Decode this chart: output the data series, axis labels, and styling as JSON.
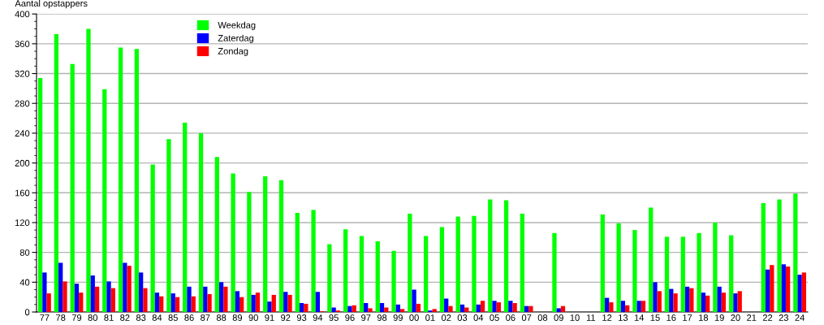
{
  "chart_data": {
    "type": "bar",
    "ylabel": "Aantal opstappers",
    "categories": [
      "77",
      "78",
      "79",
      "80",
      "81",
      "82",
      "83",
      "84",
      "85",
      "86",
      "87",
      "88",
      "89",
      "90",
      "91",
      "92",
      "93",
      "94",
      "95",
      "96",
      "97",
      "98",
      "99",
      "00",
      "01",
      "02",
      "03",
      "04",
      "05",
      "06",
      "07",
      "08",
      "09",
      "10",
      "11",
      "12",
      "13",
      "14",
      "15",
      "16",
      "17",
      "18",
      "19",
      "20",
      "21",
      "22",
      "23",
      "24"
    ],
    "series": [
      {
        "name": "Weekdag",
        "color": "#00ff00",
        "values": [
          314,
          373,
          333,
          380,
          299,
          355,
          353,
          198,
          232,
          254,
          240,
          208,
          186,
          161,
          182,
          177,
          133,
          137,
          91,
          111,
          102,
          95,
          82,
          132,
          102,
          114,
          128,
          129,
          151,
          150,
          132,
          null,
          106,
          null,
          null,
          131,
          119,
          110,
          140,
          101,
          101,
          106,
          120,
          103,
          null,
          146,
          151,
          159
        ]
      },
      {
        "name": "Zaterdag",
        "color": "#0000ff",
        "values": [
          53,
          66,
          38,
          49,
          41,
          66,
          53,
          26,
          25,
          34,
          34,
          40,
          28,
          23,
          14,
          27,
          12,
          27,
          6,
          8,
          12,
          12,
          10,
          30,
          2,
          18,
          10,
          10,
          15,
          15,
          8,
          null,
          5,
          null,
          null,
          19,
          15,
          15,
          40,
          31,
          34,
          26,
          34,
          25,
          null,
          57,
          64,
          50
        ]
      },
      {
        "name": "Zondag",
        "color": "#ff0000",
        "values": [
          25,
          41,
          26,
          34,
          32,
          62,
          32,
          21,
          20,
          21,
          24,
          34,
          20,
          26,
          23,
          23,
          11,
          1,
          2,
          9,
          5,
          6,
          4,
          11,
          4,
          8,
          6,
          15,
          13,
          12,
          8,
          null,
          8,
          null,
          null,
          13,
          9,
          15,
          28,
          25,
          32,
          22,
          26,
          28,
          null,
          63,
          61,
          53
        ]
      }
    ],
    "ylim": [
      0,
      400
    ],
    "yticks": [
      0,
      {
        "value": 10,
        "label": null
      },
      {
        "value": 20,
        "label": null
      },
      {
        "value": 30,
        "label": null
      },
      40,
      {
        "value": 50,
        "label": null
      },
      {
        "value": 60,
        "label": null
      },
      {
        "value": 70,
        "label": null
      },
      80,
      {
        "value": 90,
        "label": null
      },
      {
        "value": 100,
        "label": null
      },
      {
        "value": 110,
        "label": null
      },
      120,
      {
        "value": 130,
        "label": null
      },
      {
        "value": 140,
        "label": null
      },
      {
        "value": 150,
        "label": null
      },
      160,
      {
        "value": 170,
        "label": null
      },
      {
        "value": 180,
        "label": null
      },
      {
        "value": 190,
        "label": null
      },
      200,
      {
        "value": 210,
        "label": null
      },
      {
        "value": 220,
        "label": null
      },
      {
        "value": 230,
        "label": null
      },
      240,
      {
        "value": 250,
        "label": null
      },
      {
        "value": 260,
        "label": null
      },
      {
        "value": 270,
        "label": null
      },
      280,
      {
        "value": 290,
        "label": null
      },
      {
        "value": 300,
        "label": null
      },
      {
        "value": 310,
        "label": null
      },
      320,
      {
        "value": 330,
        "label": null
      },
      {
        "value": 340,
        "label": null
      },
      {
        "value": 350,
        "label": null
      },
      360,
      {
        "value": 370,
        "label": null
      },
      {
        "value": 380,
        "label": null
      },
      {
        "value": 390,
        "label": null
      },
      400
    ],
    "grid": "y",
    "legend": "top left"
  }
}
